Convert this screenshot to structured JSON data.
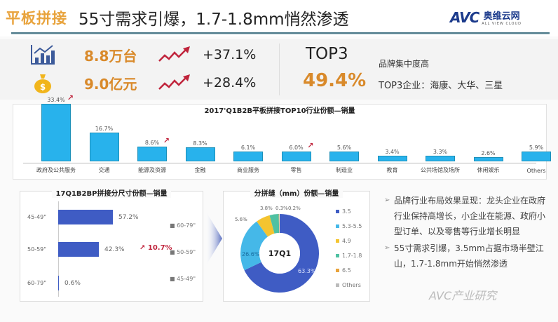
{
  "header": {
    "tag": "平板拼接",
    "title": "55寸需求引爆，1.7-1.8mm悄然渗透",
    "logo": {
      "brand": "AVC",
      "cn_name": "奥维云网",
      "sub": "ALL VIEW CLOUD"
    }
  },
  "kpis": [
    {
      "icon": "bar-chart-icon",
      "value": "8.8万台",
      "trend_icon": "trend-up-icon",
      "change": "+37.1%"
    },
    {
      "icon": "money-bag-icon",
      "value": "9.0亿元",
      "trend_icon": "trend-up-icon",
      "change": "+28.4%"
    }
  ],
  "top3": {
    "label": "TOP3",
    "value": "49.4%",
    "desc1": "品牌集中度高",
    "desc2": "TOP3企业：海康、大华、三星"
  },
  "colors": {
    "accent_orange": "#d98a2b",
    "bar_blue": "#28b2ec",
    "size_bar_blue": "#3f5cc4",
    "growth_red": "#c0243c"
  },
  "chart_data": [
    {
      "type": "bar",
      "title": "2017'Q1B2B平板拼接TOP10行业份额—销量",
      "categories": [
        "政府及公共服务",
        "交通",
        "能源及资源",
        "金融",
        "商业服务",
        "零售",
        "制造业",
        "教育",
        "公共场馆及场所",
        "休闲娱乐",
        "Others"
      ],
      "values": [
        33.4,
        16.7,
        8.6,
        8.3,
        6.1,
        6.0,
        5.6,
        3.4,
        3.3,
        2.6,
        5.9
      ],
      "labels": [
        "33.4%",
        "16.7%",
        "8.6%",
        "8.3%",
        "6.1%",
        "6.0%",
        "5.6%",
        "3.4%",
        "3.3%",
        "2.6%",
        "5.9%"
      ],
      "growth_arrows": [
        "政府及公共服务",
        "能源及资源",
        "零售"
      ],
      "xlabel": "",
      "ylabel": "",
      "ylim": [
        0,
        35
      ],
      "grid": false
    },
    {
      "type": "bar",
      "orientation": "horizontal",
      "title": "17Q1B2BP拼接分尺寸份额—销量",
      "categories": [
        "45-49\"",
        "50-59\"",
        "60-79\""
      ],
      "values": [
        57.2,
        42.3,
        0.6
      ],
      "labels": [
        "57.2%",
        "42.3%",
        "0.6%"
      ],
      "annotation": "10.7%",
      "legend": [
        "60-79\"",
        "50-59\"",
        "45-49\""
      ],
      "xlim": [
        0,
        100
      ]
    },
    {
      "type": "pie",
      "donut": true,
      "title": "分拼缝（mm）份额—销量",
      "center_label": "17Q1",
      "categories": [
        "3.5",
        "5.3-5.5",
        "4.9",
        "1.7-1.8",
        "6.5",
        "Others"
      ],
      "values": [
        63.3,
        26.6,
        5.6,
        3.8,
        0.3,
        0.2
      ],
      "labels": [
        "63.3%",
        "26.6%",
        "5.6%",
        "3.8%",
        "0.3%",
        "0.2%"
      ],
      "colors": [
        "#3f5cc4",
        "#45b8e8",
        "#f4c430",
        "#4fc1a2",
        "#e8a33c",
        "#bbbbbb"
      ],
      "legend_position": "right"
    }
  ],
  "top10": {
    "title": "2017'Q1B2B平板拼接TOP10行业份额—销量",
    "bars": [
      {
        "cat": "政府及公共服务",
        "val": "33.4%",
        "h": 82,
        "up": true
      },
      {
        "cat": "交通",
        "val": "16.7%",
        "h": 41,
        "up": false
      },
      {
        "cat": "能源及资源",
        "val": "8.6%",
        "h": 21,
        "up": true
      },
      {
        "cat": "金融",
        "val": "8.3%",
        "h": 20,
        "up": false
      },
      {
        "cat": "商业服务",
        "val": "6.1%",
        "h": 14,
        "up": false
      },
      {
        "cat": "零售",
        "val": "6.0%",
        "h": 14,
        "up": true
      },
      {
        "cat": "制造业",
        "val": "5.6%",
        "h": 14,
        "up": false
      },
      {
        "cat": "教育",
        "val": "3.4%",
        "h": 8,
        "up": false
      },
      {
        "cat": "公共场馆及场所",
        "val": "3.3%",
        "h": 8,
        "up": false
      },
      {
        "cat": "休闲娱乐",
        "val": "2.6%",
        "h": 6,
        "up": false
      },
      {
        "cat": "Others",
        "val": "5.9%",
        "h": 14,
        "up": false
      }
    ],
    "up_glyph": "↗"
  },
  "size_chart": {
    "title": "17Q1B2BP拼接分尺寸份额—销量",
    "rows": [
      {
        "label": "45-49\"",
        "val": "57.2%"
      },
      {
        "label": "50-59\"",
        "val": "42.3%"
      },
      {
        "label": "60-79\"",
        "val": "0.6%"
      }
    ],
    "legend": [
      "■ 60-79\"",
      "■ 50-59\"",
      "■ 45-49\""
    ],
    "growth": "↗ 10.7%"
  },
  "donut": {
    "title": "分拼缝（mm）份额—销量",
    "center": "17Q1",
    "labels": {
      "s0": "63.3%",
      "s1": "26.6%",
      "s2": "5.6%",
      "s3": "3.8%",
      "s4": "0.3%",
      "s5": "0.2%"
    },
    "legend": [
      "3.5",
      "5.3-5.5",
      "4.9",
      "1.7-1.8",
      "6.5",
      "Others"
    ]
  },
  "bullets": [
    "品牌行业布局效果显现：龙头企业在政府行业保持高增长，小企业在能源、政府小型订单、以及零售等行业增长明显",
    "55寸需求引爆，3.5mm占据市场半壁江山，1.7-1.8mm开始悄然渗透"
  ],
  "bullet_mark": "➢",
  "watermark": "AVC产业研究"
}
